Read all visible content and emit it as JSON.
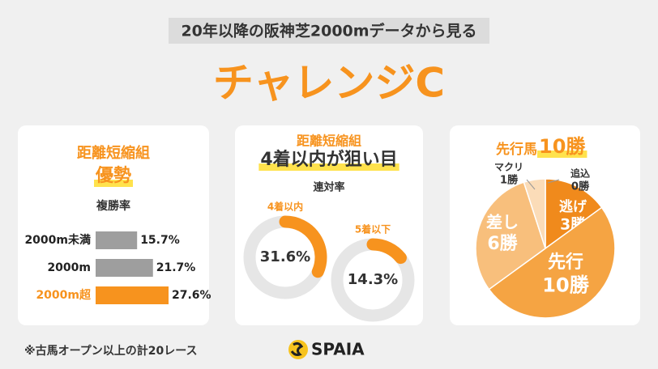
{
  "header": {
    "subtitle": "20年以降の阪神芝2000mデータから見る",
    "title": "チャレンジC"
  },
  "chart_data": [
    {
      "type": "bar",
      "title": "距離短縮組",
      "subtitle": "優勢",
      "axis_label": "複勝率",
      "categories": [
        "2000m未満",
        "2000m",
        "2000m超"
      ],
      "values": [
        15.7,
        21.7,
        27.6
      ],
      "value_labels": [
        "15.7%",
        "21.7%",
        "27.6%"
      ],
      "colors": [
        "#9e9e9e",
        "#9e9e9e",
        "#f7931e"
      ]
    },
    {
      "type": "donut",
      "title": "距離短縮組",
      "subtitle": "4着以内が狙い目",
      "axis_label": "連対率",
      "categories": [
        "4着以内",
        "5着以下"
      ],
      "values": [
        31.6,
        14.3
      ],
      "value_labels": [
        "31.6%",
        "14.3%"
      ],
      "color": "#f7931e"
    },
    {
      "type": "pie",
      "title": "先行馬",
      "title_emphasis": "10勝",
      "categories": [
        "逃げ",
        "先行",
        "差し",
        "マクリ",
        "追込"
      ],
      "values": [
        3,
        10,
        6,
        1,
        0
      ],
      "value_labels": [
        "3勝",
        "10勝",
        "6勝",
        "1勝",
        "0勝"
      ],
      "colors": [
        "#f08a1c",
        "#f5a443",
        "#f8bf7c",
        "#fbdcb8",
        "#ffffff"
      ]
    }
  ],
  "footer": {
    "note": "※古馬オープン以上の計20レース",
    "logo": "SPAIA"
  }
}
